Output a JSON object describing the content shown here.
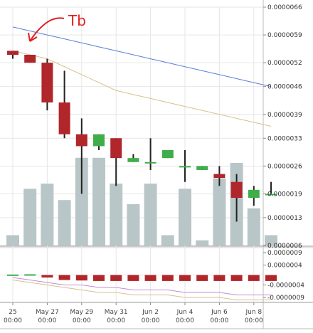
{
  "chart_data": {
    "type": "candlestick",
    "x": [
      "May 25",
      "May 26",
      "May 27",
      "May 28",
      "May 29",
      "May 30",
      "May 31",
      "Jun 1",
      "Jun 2",
      "Jun 3",
      "Jun 4",
      "Jun 5",
      "Jun 6",
      "Jun 7",
      "Jun 8",
      "Jun 9"
    ],
    "date_tick_labels": [
      {
        "date": "May 25",
        "time": "00:00",
        "label": "25"
      },
      {
        "date": "May 27",
        "time": "00:00",
        "label": "May 27"
      },
      {
        "date": "May 29",
        "time": "00:00",
        "label": "May 29"
      },
      {
        "date": "May 31",
        "time": "00:00",
        "label": "May 31"
      },
      {
        "date": "Jun 2",
        "time": "00:00",
        "label": "Jun 2"
      },
      {
        "date": "Jun 4",
        "time": "00:00",
        "label": "Jun 4"
      },
      {
        "date": "Jun 6",
        "time": "00:00",
        "label": "Jun 6"
      },
      {
        "date": "Jun 8",
        "time": "00:00",
        "label": "Jun 8"
      }
    ],
    "candles": [
      {
        "date": "May 25",
        "open": 5.5e-06,
        "high": 5.5e-06,
        "low": 5.3e-06,
        "close": 5.4e-06
      },
      {
        "date": "May 26",
        "open": 5.4e-06,
        "high": 5.4e-06,
        "low": 5.2e-06,
        "close": 5.2e-06
      },
      {
        "date": "May 27",
        "open": 5.2e-06,
        "high": 5.3e-06,
        "low": 4e-06,
        "close": 4.2e-06
      },
      {
        "date": "May 28",
        "open": 4.2e-06,
        "high": 5e-06,
        "low": 3.3e-06,
        "close": 3.4e-06
      },
      {
        "date": "May 29",
        "open": 3.4e-06,
        "high": 3.8e-06,
        "low": 1.9e-06,
        "close": 3.1e-06
      },
      {
        "date": "May 30",
        "open": 3.1e-06,
        "high": 3.4e-06,
        "low": 3e-06,
        "close": 3.4e-06
      },
      {
        "date": "May 31",
        "open": 3.3e-06,
        "high": 3.3e-06,
        "low": 2.1e-06,
        "close": 2.8e-06
      },
      {
        "date": "Jun 1",
        "open": 2.7e-06,
        "high": 2.9e-06,
        "low": 2.7e-06,
        "close": 2.8e-06
      },
      {
        "date": "Jun 2",
        "open": 2.7e-06,
        "high": 3.3e-06,
        "low": 2.5e-06,
        "close": 2.7e-06
      },
      {
        "date": "Jun 3",
        "open": 2.8e-06,
        "high": 3e-06,
        "low": 2.8e-06,
        "close": 3e-06
      },
      {
        "date": "Jun 4",
        "open": 2.6e-06,
        "high": 3e-06,
        "low": 2.2e-06,
        "close": 2.6e-06
      },
      {
        "date": "Jun 5",
        "open": 2.5e-06,
        "high": 2.6e-06,
        "low": 2.5e-06,
        "close": 2.6e-06
      },
      {
        "date": "Jun 6",
        "open": 2.4e-06,
        "high": 2.6e-06,
        "low": 2.1e-06,
        "close": 2.3e-06
      },
      {
        "date": "Jun 7",
        "open": 2.2e-06,
        "high": 2.4e-06,
        "low": 1.2e-06,
        "close": 1.8e-06
      },
      {
        "date": "Jun 8",
        "open": 1.8e-06,
        "high": 2.1e-06,
        "low": 1.6e-06,
        "close": 2e-06
      },
      {
        "date": "Jun 9",
        "open": 1.9e-06,
        "high": 2.2e-06,
        "low": 1.9e-06,
        "close": 1.9e-06
      }
    ],
    "volume_relative": [
      0.1,
      0.55,
      0.6,
      0.44,
      0.85,
      0.85,
      0.6,
      0.4,
      0.6,
      0.1,
      0.55,
      0.05,
      0.65,
      0.8,
      0.36,
      0.1
    ],
    "ma_lines": [
      {
        "color": "#5b7ed6",
        "values": [
          6.1e-06,
          6e-06,
          5.9e-06,
          5.8e-06,
          5.7e-06,
          5.6e-06,
          5.5e-06,
          5.4e-06,
          5.3e-06,
          5.2e-06,
          5.1e-06,
          5e-06,
          4.9e-06,
          4.8e-06,
          4.7e-06,
          4.6e-06
        ]
      },
      {
        "color": "#d9c08a",
        "values": [
          5.5e-06,
          5.4e-06,
          5.3e-06,
          5.1e-06,
          4.9e-06,
          4.7e-06,
          4.5e-06,
          4.4e-06,
          4.3e-06,
          4.2e-06,
          4.1e-06,
          4e-06,
          3.9e-06,
          3.8e-06,
          3.7e-06,
          3.6e-06
        ]
      }
    ],
    "y_tick_labels": [
      "0.0000066",
      "0.0000059",
      "0.0000052",
      "0.0000046",
      "0.0000039",
      "0.0000033",
      "0.0000026",
      "0.0000019",
      "0.0000013",
      "0.0000006"
    ],
    "ylim": [
      6e-07,
      6.6e-06
    ],
    "indicator_tick_labels": [
      "0.0000009",
      "0.0000004",
      "-0.0000004",
      "-0.0000009"
    ],
    "indicator_lim": [
      -1.1e-06,
      1.1e-06
    ],
    "indicator_histogram": [
      2e-08,
      3e-08,
      -1e-07,
      -2e-07,
      -2.2e-07,
      -2.4e-07,
      -2.4e-07,
      -2.4e-07,
      -2.4e-07,
      -2.4e-07,
      -2.4e-07,
      -2.4e-07,
      -2.4e-07,
      -2.4e-07,
      -2.4e-07,
      -2.4e-07
    ],
    "indicator_lines": [
      {
        "color": "#d9c08a",
        "values": [
          -2e-07,
          -3e-07,
          -4e-07,
          -5e-07,
          -6e-07,
          -7e-07,
          -7e-07,
          -8e-07,
          -8e-07,
          -8e-07,
          -9e-07,
          -9e-07,
          -9e-07,
          -1e-06,
          -1e-06,
          -1e-06
        ]
      },
      {
        "color": "#c58ad6",
        "values": [
          -1e-07,
          -2e-07,
          -3e-07,
          -4e-07,
          -4e-07,
          -5e-07,
          -5e-07,
          -6e-07,
          -6e-07,
          -6e-07,
          -7e-07,
          -7e-07,
          -7e-07,
          -8e-07,
          -8e-07,
          -8e-07
        ]
      }
    ],
    "annotation_text": "Tb",
    "colors": {
      "up": "#3fae4a",
      "down": "#b0262a",
      "volume": "#b9c6c8",
      "wick": "#222222",
      "grid": "#e6e6e6",
      "annotation": "#e02020"
    }
  }
}
